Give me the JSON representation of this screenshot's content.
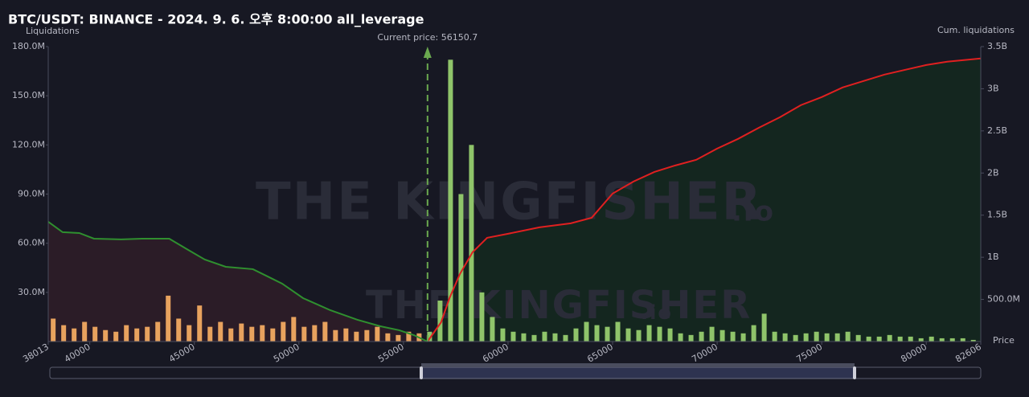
{
  "chart_data": {
    "type": "bar",
    "title": "BTC/USDT: BINANCE - 2024. 9. 6. 오후 8:00:00 all_leverage",
    "y_label": "Liquidations",
    "y2_label": "Cum. liquidations",
    "x_label": "Price",
    "watermark": "THE KINGFISHER",
    "watermark_suffix": ".io",
    "current_price_label": "Current price: 56150.7",
    "current_price": 56150.7,
    "xlim": [
      38013,
      82606
    ],
    "xticks": [
      38013,
      40000,
      45000,
      50000,
      55000,
      60000,
      65000,
      70000,
      75000,
      80000,
      82606
    ],
    "ylim": [
      0,
      180
    ],
    "yticks": [
      {
        "value": 30,
        "label": "30.0M"
      },
      {
        "value": 60,
        "label": "60.0M"
      },
      {
        "value": 90,
        "label": "90.0M"
      },
      {
        "value": 120,
        "label": "120.0M"
      },
      {
        "value": 150,
        "label": "150.0M"
      },
      {
        "value": 180,
        "label": "180.0M"
      }
    ],
    "y2lim": [
      0,
      3500
    ],
    "y2ticks": [
      {
        "value": 500,
        "label": "500.0M"
      },
      {
        "value": 1000,
        "label": "1B"
      },
      {
        "value": 1500,
        "label": "1.5B"
      },
      {
        "value": 2000,
        "label": "2B"
      },
      {
        "value": 2500,
        "label": "2.5B"
      },
      {
        "value": 3000,
        "label": "3B"
      },
      {
        "value": 3500,
        "label": "3.5B"
      }
    ],
    "series": [
      {
        "type": "bar",
        "color": "#e8a25e",
        "x": [
          38250,
          38750,
          39250,
          39750,
          40250,
          40750,
          41250,
          41750,
          42250,
          42750,
          43250,
          43750,
          44250,
          44750,
          45250,
          45750,
          46250,
          46750,
          47250,
          47750,
          48250,
          48750,
          49250,
          49750,
          50250,
          50750,
          51250,
          51750,
          52250,
          52750,
          53250,
          53750,
          54250,
          54750,
          55250,
          55750
        ],
        "values": [
          14,
          10,
          8,
          12,
          9,
          7,
          6,
          10,
          8,
          9,
          12,
          28,
          14,
          10,
          22,
          9,
          12,
          8,
          11,
          9,
          10,
          8,
          12,
          15,
          9,
          10,
          12,
          7,
          8,
          6,
          7,
          9,
          5,
          4,
          6,
          5
        ]
      },
      {
        "type": "bar",
        "color": "#8fc46a",
        "x": [
          56250,
          56750,
          57250,
          57750,
          58250,
          58750,
          59250,
          59750,
          60250,
          60750,
          61250,
          61750,
          62250,
          62750,
          63250,
          63750,
          64250,
          64750,
          65250,
          65750,
          66250,
          66750,
          67250,
          67750,
          68250,
          68750,
          69250,
          69750,
          70250,
          70750,
          71250,
          71750,
          72250,
          72750,
          73250,
          73750,
          74250,
          74750,
          75250,
          75750,
          76250,
          76750,
          77250,
          77750,
          78250,
          78750,
          79250,
          79750,
          80250,
          80750,
          81250,
          81750,
          82250
        ],
        "values": [
          6,
          25,
          172,
          90,
          120,
          30,
          15,
          8,
          6,
          5,
          4,
          6,
          5,
          4,
          8,
          12,
          10,
          9,
          12,
          8,
          7,
          10,
          9,
          8,
          5,
          4,
          6,
          9,
          7,
          6,
          5,
          10,
          17,
          6,
          5,
          4,
          5,
          6,
          5,
          5,
          6,
          4,
          3,
          3,
          4,
          3,
          3,
          2,
          3,
          2,
          2,
          2,
          1
        ]
      },
      {
        "type": "line",
        "axis": "y2",
        "color": "#2f8f2f",
        "fill": "#2b1c27",
        "x": [
          38013,
          38700,
          39500,
          40200,
          41500,
          42500,
          43800,
          44700,
          45500,
          46500,
          47800,
          48500,
          49200,
          50200,
          51500,
          52800,
          53900,
          54800,
          55500,
          56150
        ],
        "values": [
          1422,
          1298,
          1288,
          1221,
          1212,
          1221,
          1221,
          1088,
          973,
          887,
          859,
          773,
          687,
          515,
          372,
          258,
          181,
          134,
          76,
          0
        ]
      },
      {
        "type": "line",
        "axis": "y2",
        "color": "#e02020",
        "fill": "#14261f",
        "x": [
          56150,
          56800,
          57200,
          57700,
          58300,
          59000,
          60000,
          61500,
          63000,
          64000,
          65000,
          66000,
          67000,
          68000,
          69000,
          70000,
          71000,
          72000,
          73000,
          74000,
          75000,
          76000,
          77000,
          78000,
          79000,
          80000,
          81000,
          82606
        ],
        "values": [
          0,
          229,
          515,
          802,
          1059,
          1231,
          1279,
          1355,
          1403,
          1469,
          1756,
          1899,
          2013,
          2090,
          2157,
          2290,
          2405,
          2538,
          2662,
          2805,
          2901,
          3015,
          3092,
          3168,
          3225,
          3282,
          3321,
          3359
        ]
      }
    ]
  }
}
